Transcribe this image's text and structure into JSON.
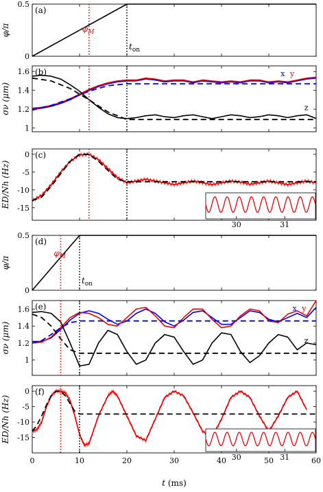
{
  "figure": {
    "xlabel": "t (ms)",
    "xticks": [
      "0",
      "10",
      "20",
      "30",
      "40",
      "50",
      "60"
    ]
  },
  "chart_data": [
    {
      "panel": "(a)",
      "type": "line",
      "ylabel": "φ/π",
      "xlim": [
        0,
        60
      ],
      "ylim": [
        0,
        0.5
      ],
      "yticks": [
        "0",
        "0.5"
      ],
      "vlines": [
        {
          "x": 12,
          "style": "red-dotted",
          "label": "φM"
        },
        {
          "x": 20,
          "style": "black-dotted",
          "label": "ton"
        }
      ],
      "series": [
        {
          "color": "#000000",
          "x": [
            0,
            20,
            60
          ],
          "y": [
            0,
            0.5,
            0.5
          ]
        }
      ]
    },
    {
      "panel": "(b)",
      "type": "line",
      "ylabel": "σν (μm)",
      "xlim": [
        0,
        60
      ],
      "ylim": [
        0.96,
        1.66
      ],
      "yticks": [
        "1",
        "1.2",
        "1.4",
        "1.6"
      ],
      "annotations": [
        "x",
        "y",
        "z"
      ],
      "series": [
        {
          "name": "x",
          "color": "#0000ee",
          "style": "solid",
          "x": [
            0,
            2,
            4,
            6,
            8,
            10,
            12,
            14,
            16,
            18,
            20,
            22,
            24,
            26,
            28,
            30,
            32,
            34,
            36,
            38,
            40,
            42,
            44,
            46,
            48,
            50,
            52,
            54,
            56,
            58,
            60
          ],
          "y": [
            1.2,
            1.21,
            1.23,
            1.26,
            1.3,
            1.35,
            1.4,
            1.44,
            1.47,
            1.49,
            1.5,
            1.5,
            1.52,
            1.51,
            1.49,
            1.5,
            1.5,
            1.48,
            1.5,
            1.49,
            1.48,
            1.49,
            1.48,
            1.5,
            1.5,
            1.48,
            1.49,
            1.48,
            1.5,
            1.52,
            1.53
          ]
        },
        {
          "name": "y",
          "color": "#ee0000",
          "style": "solid",
          "x": [
            0,
            2,
            4,
            6,
            8,
            10,
            12,
            14,
            16,
            18,
            20,
            22,
            24,
            26,
            28,
            30,
            32,
            34,
            36,
            38,
            40,
            42,
            44,
            46,
            48,
            50,
            52,
            54,
            56,
            58,
            60
          ],
          "y": [
            1.21,
            1.22,
            1.24,
            1.27,
            1.31,
            1.36,
            1.41,
            1.45,
            1.48,
            1.5,
            1.51,
            1.51,
            1.53,
            1.52,
            1.5,
            1.51,
            1.51,
            1.49,
            1.51,
            1.5,
            1.49,
            1.5,
            1.49,
            1.51,
            1.51,
            1.49,
            1.5,
            1.49,
            1.51,
            1.53,
            1.54
          ]
        },
        {
          "name": "xy-target",
          "color": "#0000ee",
          "style": "dashed",
          "x": [
            0,
            4,
            8,
            12,
            16,
            20,
            60
          ],
          "y": [
            1.19,
            1.24,
            1.31,
            1.39,
            1.45,
            1.47,
            1.47
          ]
        },
        {
          "name": "z",
          "color": "#000000",
          "style": "solid",
          "x": [
            0,
            2,
            4,
            6,
            8,
            10,
            12,
            14,
            16,
            18,
            20,
            22,
            24,
            26,
            28,
            30,
            32,
            34,
            36,
            38,
            40,
            42,
            44,
            46,
            48,
            50,
            52,
            54,
            56,
            58,
            60
          ],
          "y": [
            1.55,
            1.56,
            1.55,
            1.52,
            1.46,
            1.39,
            1.3,
            1.22,
            1.15,
            1.11,
            1.1,
            1.11,
            1.13,
            1.14,
            1.12,
            1.11,
            1.13,
            1.14,
            1.12,
            1.1,
            1.12,
            1.14,
            1.13,
            1.11,
            1.12,
            1.14,
            1.13,
            1.11,
            1.13,
            1.14,
            1.1
          ]
        },
        {
          "name": "z-target",
          "color": "#000000",
          "style": "dashed",
          "x": [
            0,
            4,
            8,
            12,
            16,
            20,
            60
          ],
          "y": [
            1.53,
            1.5,
            1.42,
            1.3,
            1.17,
            1.09,
            1.09
          ]
        }
      ]
    },
    {
      "panel": "(c)",
      "type": "line",
      "ylabel": "ED/Nh (Hz)",
      "xlim": [
        0,
        60
      ],
      "ylim": [
        -18.5,
        1.5
      ],
      "yticks": [
        "0",
        "-5",
        "-10",
        "-15"
      ],
      "series": [
        {
          "name": "ED",
          "color": "#ee0000",
          "style": "solid",
          "x": [
            0,
            2,
            4,
            6,
            8,
            10,
            12,
            14,
            16,
            18,
            20,
            22,
            24,
            26,
            28,
            30,
            32,
            34,
            36,
            38,
            40,
            42,
            44,
            46,
            48,
            50,
            52,
            54,
            56,
            58,
            60
          ],
          "y": [
            -13,
            -11.5,
            -8.5,
            -5,
            -2,
            -0.2,
            0,
            -1.5,
            -4,
            -6.5,
            -8,
            -7.5,
            -7,
            -7.5,
            -8,
            -8.5,
            -8,
            -7.5,
            -8,
            -8.5,
            -8,
            -7.5,
            -7.8,
            -8.4,
            -8,
            -7.5,
            -8,
            -8.5,
            -8,
            -7.5,
            -8
          ]
        },
        {
          "name": "ED-target",
          "color": "#000000",
          "style": "dashed",
          "x": [
            0,
            2,
            4,
            6,
            8,
            10,
            12,
            14,
            16,
            18,
            20,
            60
          ],
          "y": [
            -13,
            -12,
            -9,
            -5.5,
            -2,
            0,
            0,
            -2,
            -4.5,
            -7,
            -7.7,
            -7.7
          ]
        }
      ],
      "inset": {
        "xticks": [
          "30",
          "31"
        ]
      }
    },
    {
      "panel": "(d)",
      "type": "line",
      "ylabel": "φ/π",
      "xlim": [
        0,
        60
      ],
      "ylim": [
        0,
        0.5
      ],
      "yticks": [
        "0",
        "0.5"
      ],
      "vlines": [
        {
          "x": 6,
          "style": "red-dotted",
          "label": "φM"
        },
        {
          "x": 10,
          "style": "black-dotted",
          "label": "ton"
        }
      ],
      "series": [
        {
          "color": "#000000",
          "x": [
            0,
            10,
            60
          ],
          "y": [
            0,
            0.5,
            0.5
          ]
        }
      ]
    },
    {
      "panel": "(e)",
      "type": "line",
      "ylabel": "σν (μm)",
      "xlim": [
        0,
        60
      ],
      "ylim": [
        0.82,
        1.7
      ],
      "yticks": [
        "1",
        "1.2",
        "1.4",
        "1.6"
      ],
      "annotations": [
        "x",
        "y",
        "z"
      ],
      "series": [
        {
          "name": "x",
          "color": "#0000ee",
          "style": "solid",
          "x": [
            0,
            2,
            4,
            6,
            8,
            10,
            12,
            14,
            16,
            18,
            20,
            22,
            24,
            26,
            28,
            30,
            32,
            34,
            36,
            38,
            40,
            42,
            44,
            46,
            48,
            50,
            52,
            54,
            56,
            58,
            60
          ],
          "y": [
            1.22,
            1.22,
            1.26,
            1.36,
            1.47,
            1.55,
            1.58,
            1.55,
            1.48,
            1.42,
            1.46,
            1.55,
            1.6,
            1.55,
            1.45,
            1.4,
            1.47,
            1.56,
            1.58,
            1.5,
            1.42,
            1.42,
            1.5,
            1.58,
            1.56,
            1.48,
            1.45,
            1.5,
            1.55,
            1.5,
            1.62
          ]
        },
        {
          "name": "y",
          "color": "#ee0000",
          "style": "solid",
          "x": [
            0,
            2,
            4,
            6,
            8,
            10,
            12,
            14,
            16,
            18,
            20,
            22,
            24,
            26,
            28,
            30,
            32,
            34,
            36,
            38,
            40,
            42,
            44,
            46,
            48,
            50,
            52,
            54,
            56,
            58,
            60
          ],
          "y": [
            1.2,
            1.21,
            1.27,
            1.38,
            1.5,
            1.56,
            1.55,
            1.5,
            1.42,
            1.4,
            1.5,
            1.6,
            1.62,
            1.52,
            1.4,
            1.38,
            1.5,
            1.6,
            1.6,
            1.48,
            1.38,
            1.4,
            1.52,
            1.6,
            1.58,
            1.46,
            1.44,
            1.54,
            1.58,
            1.52,
            1.7
          ]
        },
        {
          "name": "xy-target",
          "color": "#0000ee",
          "style": "dashed",
          "x": [
            0,
            2,
            4,
            6,
            8,
            10,
            60
          ],
          "y": [
            1.2,
            1.23,
            1.3,
            1.38,
            1.44,
            1.46,
            1.46
          ]
        },
        {
          "name": "z",
          "color": "#000000",
          "style": "solid",
          "x": [
            0,
            2,
            4,
            6,
            8,
            10,
            12,
            14,
            16,
            18,
            20,
            22,
            24,
            26,
            28,
            30,
            32,
            34,
            36,
            38,
            40,
            42,
            44,
            46,
            48,
            50,
            52,
            54,
            56,
            58,
            60
          ],
          "y": [
            1.56,
            1.57,
            1.55,
            1.45,
            1.2,
            0.93,
            0.95,
            1.2,
            1.35,
            1.3,
            1.1,
            0.95,
            1.0,
            1.2,
            1.3,
            1.27,
            1.1,
            0.95,
            1.0,
            1.2,
            1.32,
            1.3,
            1.1,
            0.97,
            1.05,
            1.2,
            1.3,
            1.27,
            1.12,
            1.2,
            1.18
          ]
        },
        {
          "name": "z-target",
          "color": "#000000",
          "style": "dashed",
          "x": [
            0,
            2,
            4,
            6,
            8,
            10,
            60
          ],
          "y": [
            1.54,
            1.5,
            1.4,
            1.25,
            1.12,
            1.08,
            1.08
          ]
        }
      ]
    },
    {
      "panel": "(f)",
      "type": "line",
      "ylabel": "ED/Nh (Hz)",
      "xlim": [
        0,
        60
      ],
      "ylim": [
        -20,
        1.8
      ],
      "yticks": [
        "0",
        "-5",
        "-10",
        "-15"
      ],
      "series": [
        {
          "name": "ED",
          "color": "#ee0000",
          "style": "solid",
          "x": [
            0,
            1,
            2,
            3,
            4,
            5,
            6,
            7,
            8,
            9,
            10,
            11,
            12,
            14,
            16,
            17,
            18,
            20,
            22,
            24,
            26,
            28,
            30,
            32,
            34,
            36,
            38,
            40,
            42,
            44,
            46,
            48,
            50,
            52,
            54,
            56,
            58
          ],
          "y": [
            -13,
            -12.5,
            -10,
            -5,
            -1.5,
            0,
            0,
            -0.5,
            -3,
            -8,
            -14,
            -17.5,
            -17,
            -8,
            -1.5,
            0,
            -1.5,
            -8,
            -14.5,
            -16,
            -9,
            -2,
            0,
            -1.5,
            -7,
            -13,
            -15,
            -9,
            -2,
            0,
            -2,
            -8,
            -13,
            -8,
            -2,
            0,
            -6
          ]
        },
        {
          "name": "ED-target",
          "color": "#000000",
          "style": "dashed",
          "x": [
            0,
            1,
            2,
            3,
            4,
            5,
            6,
            7,
            8,
            9,
            10,
            60
          ],
          "y": [
            -13,
            -11,
            -8,
            -4.5,
            -1.5,
            0,
            0,
            -1.5,
            -4,
            -6.5,
            -7.4,
            -7.4
          ]
        }
      ],
      "inset": {
        "xticks": [
          "30",
          "31"
        ]
      }
    }
  ],
  "labels": {
    "phiM": "φ",
    "phiM_sub": "M",
    "ton_t": "t",
    "ton_sub": "on"
  }
}
